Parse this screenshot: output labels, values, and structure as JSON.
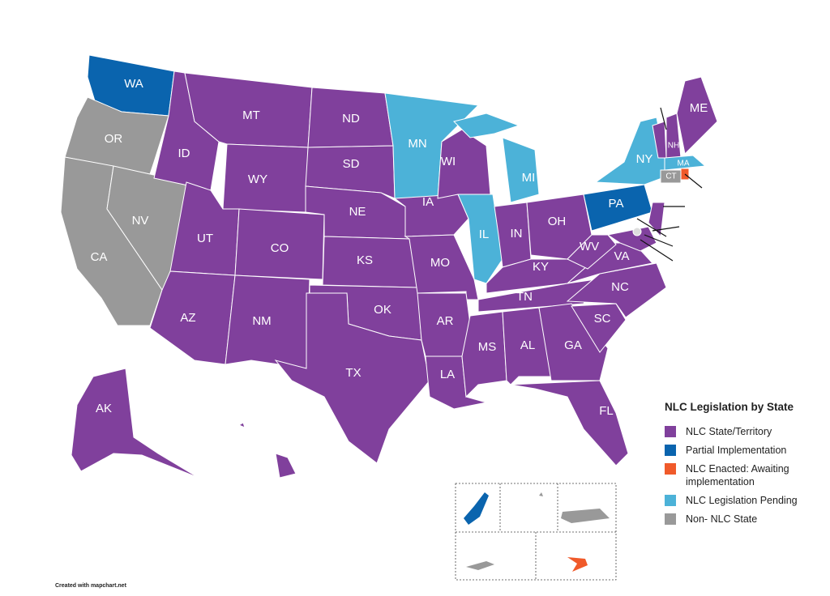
{
  "legend": {
    "title": "NLC Legislation by State",
    "items": [
      {
        "label": "NLC State/Territory",
        "color": "#80409c"
      },
      {
        "label": "Partial Implementation",
        "color": "#0a64ae"
      },
      {
        "label": "NLC Enacted: Awaiting implementation",
        "color": "#f05a2a"
      },
      {
        "label": "NLC Legislation Pending",
        "color": "#4cb2d8"
      },
      {
        "label": "Non- NLC State",
        "color": "#999999"
      }
    ]
  },
  "states": [
    {
      "label": "WA",
      "category": 1
    },
    {
      "label": "OR",
      "category": 4
    },
    {
      "label": "CA",
      "category": 4
    },
    {
      "label": "NV",
      "category": 4
    },
    {
      "label": "ID",
      "category": 0
    },
    {
      "label": "MT",
      "category": 0
    },
    {
      "label": "WY",
      "category": 0
    },
    {
      "label": "UT",
      "category": 0
    },
    {
      "label": "CO",
      "category": 0
    },
    {
      "label": "AZ",
      "category": 0
    },
    {
      "label": "NM",
      "category": 0
    },
    {
      "label": "ND",
      "category": 0
    },
    {
      "label": "SD",
      "category": 0
    },
    {
      "label": "NE",
      "category": 0
    },
    {
      "label": "KS",
      "category": 0
    },
    {
      "label": "OK",
      "category": 0
    },
    {
      "label": "TX",
      "category": 0
    },
    {
      "label": "MN",
      "category": 3
    },
    {
      "label": "IA",
      "category": 0
    },
    {
      "label": "MO",
      "category": 0
    },
    {
      "label": "AR",
      "category": 0
    },
    {
      "label": "LA",
      "category": 0
    },
    {
      "label": "WI",
      "category": 0
    },
    {
      "label": "IL",
      "category": 3
    },
    {
      "label": "MI",
      "category": 3
    },
    {
      "label": "IN",
      "category": 0
    },
    {
      "label": "OH",
      "category": 0
    },
    {
      "label": "KY",
      "category": 0
    },
    {
      "label": "TN",
      "category": 0
    },
    {
      "label": "MS",
      "category": 0
    },
    {
      "label": "AL",
      "category": 0
    },
    {
      "label": "GA",
      "category": 0
    },
    {
      "label": "FL",
      "category": 0
    },
    {
      "label": "SC",
      "category": 0
    },
    {
      "label": "NC",
      "category": 0
    },
    {
      "label": "VA",
      "category": 0
    },
    {
      "label": "WV",
      "category": 0
    },
    {
      "label": "PA",
      "category": 1
    },
    {
      "label": "NY",
      "category": 3
    },
    {
      "category": 0
    },
    {
      "category": 0
    },
    {
      "category": 0
    },
    {
      "label": "NH",
      "category": 0
    },
    {
      "label": "ME",
      "category": 0
    },
    {
      "label": "MA",
      "category": 3
    },
    {
      "label": "CT",
      "category": 4
    },
    {
      "category": 2
    },
    {
      "label": "AK",
      "category": 0
    },
    {
      "category": 0
    },
    {
      "category": 4
    }
  ],
  "territories": [
    {
      "category": 1
    },
    {
      "category": 4
    },
    {
      "category": 4
    },
    {
      "category": 4
    },
    {
      "category": 2
    }
  ],
  "credit": "Created with mapchart.net"
}
